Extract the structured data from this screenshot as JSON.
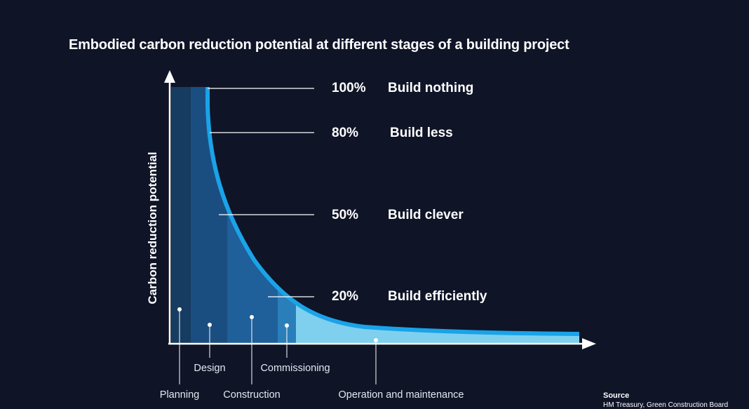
{
  "chart_data": {
    "type": "area",
    "title": "Embodied carbon reduction potential at different stages of a building project",
    "ylabel": "Carbon reduction potential",
    "levels": [
      {
        "value": 100,
        "pct_label": "100%",
        "label": "Build nothing"
      },
      {
        "value": 80,
        "pct_label": "80%",
        "label": "Build less"
      },
      {
        "value": 50,
        "pct_label": "50%",
        "label": "Build clever"
      },
      {
        "value": 20,
        "pct_label": "20%",
        "label": "Build efficiently"
      }
    ],
    "stages": [
      "Planning",
      "Design",
      "Construction",
      "Commissioning",
      "Operation and maintenance"
    ],
    "source_title": "Source",
    "source_text": "HM Treasury, Green Construction Board"
  },
  "colors": {
    "background": "#0f1427",
    "curve": "#1aa3e8",
    "stage_fills": [
      "#163c61",
      "#1b4e80",
      "#1f5f9a",
      "#2a7fbb",
      "#7fd0ee"
    ]
  }
}
